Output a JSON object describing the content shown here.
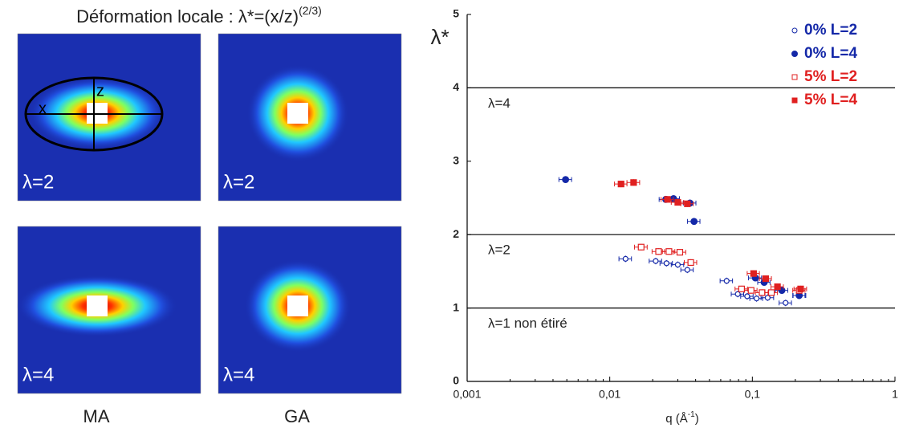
{
  "panel": {
    "title": "Déformation locale : λ*=(x/z)",
    "title_sup": "(2/3)",
    "images": [
      {
        "label": "λ=2"
      },
      {
        "label": "λ=2"
      },
      {
        "label": "λ=4"
      },
      {
        "label": "λ=4"
      }
    ],
    "columns": [
      "MA",
      "GA"
    ],
    "ellipse_labels": [
      "x",
      "z"
    ]
  },
  "chart_data": {
    "type": "scatter",
    "y_label": "λ*",
    "x_label": "q (Å",
    "x_label_sup": "-1",
    "x_label_end": ")",
    "x_scale": "log",
    "xlim": [
      0.001,
      1
    ],
    "xticks": [
      {
        "value": 0.001,
        "label": "0,001"
      },
      {
        "value": 0.01,
        "label": "0,01"
      },
      {
        "value": 0.1,
        "label": "0,1"
      },
      1
    ],
    "ylim": [
      0,
      5
    ],
    "yticks": [
      0,
      1,
      2,
      3,
      4,
      5
    ],
    "legend": "top-right",
    "hlines": [
      {
        "value": 4,
        "label": "λ=4"
      },
      {
        "value": 2,
        "label": "λ=2"
      },
      {
        "value": 1,
        "label": "λ=1 non étiré"
      }
    ],
    "series": [
      {
        "name": "0% L=2",
        "color": "#1428a8",
        "marker": "open-circle",
        "x": [
          0.0129,
          0.021,
          0.025,
          0.03,
          0.035,
          0.066,
          0.079,
          0.092,
          0.107,
          0.128,
          0.171,
          0.215
        ],
        "values": [
          1.67,
          1.64,
          1.61,
          1.59,
          1.52,
          1.37,
          1.19,
          1.16,
          1.13,
          1.14,
          1.07,
          1.17
        ],
        "xerr": [
          0.0013,
          0.0021,
          0.0025,
          0.003,
          0.0035,
          0.0066,
          0.0079,
          0.0092,
          0.011,
          0.013,
          0.017,
          0.022
        ]
      },
      {
        "name": "0% L=4",
        "color": "#1428a8",
        "marker": "filled-circle",
        "x": [
          0.0049,
          0.0247,
          0.028,
          0.0365,
          0.039,
          0.105,
          0.121,
          0.161,
          0.213
        ],
        "values": [
          2.75,
          2.48,
          2.49,
          2.43,
          2.18,
          1.41,
          1.35,
          1.24,
          1.17
        ],
        "xerr": [
          0.0005,
          0.0025,
          0.0028,
          0.0037,
          0.0039,
          0.011,
          0.012,
          0.016,
          0.021
        ]
      },
      {
        "name": "5% L=2",
        "color": "#e02020",
        "marker": "open-square",
        "x": [
          0.0166,
          0.022,
          0.026,
          0.031,
          0.037,
          0.084,
          0.098,
          0.117,
          0.136,
          0.213
        ],
        "values": [
          1.83,
          1.77,
          1.77,
          1.76,
          1.62,
          1.26,
          1.24,
          1.21,
          1.21,
          1.24
        ],
        "xerr": [
          0.0017,
          0.0022,
          0.0026,
          0.0031,
          0.0037,
          0.0084,
          0.0098,
          0.012,
          0.014,
          0.021
        ]
      },
      {
        "name": "5% L=4",
        "color": "#e02020",
        "marker": "filled-square",
        "x": [
          0.012,
          0.0147,
          0.0254,
          0.03,
          0.035,
          0.102,
          0.124,
          0.15,
          0.218
        ],
        "values": [
          2.69,
          2.71,
          2.48,
          2.44,
          2.42,
          1.47,
          1.4,
          1.29,
          1.26
        ],
        "xerr": [
          0.0012,
          0.0015,
          0.0025,
          0.003,
          0.0035,
          0.01,
          0.012,
          0.015,
          0.022
        ]
      }
    ]
  }
}
